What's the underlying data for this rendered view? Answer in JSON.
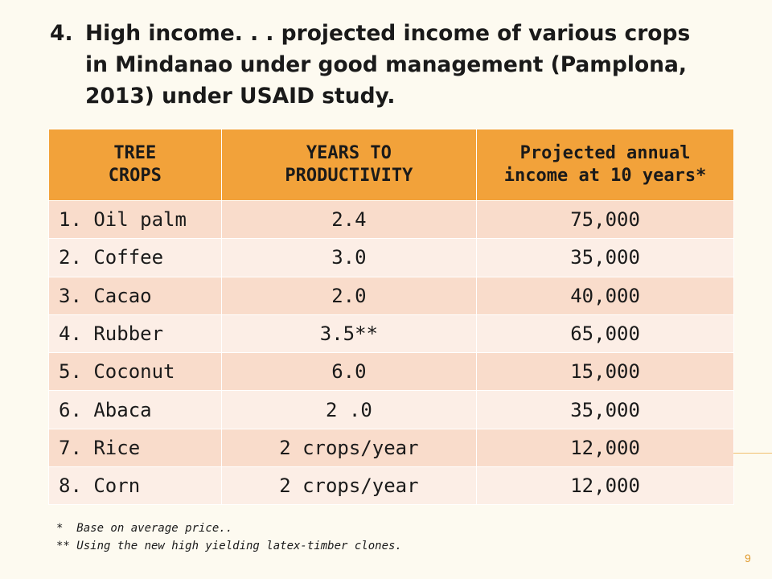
{
  "heading": {
    "number": "4.",
    "line1": "High income. . . projected income of various crops",
    "line2": "in Mindanao under good management (Pamplona,",
    "line3": "2013) under USAID study."
  },
  "table": {
    "headers": {
      "col1_line1": "TREE",
      "col1_line2": "CROPS",
      "col2_line1": "YEARS TO",
      "col2_line2": "PRODUCTIVITY",
      "col3_line1": "Projected annual",
      "col3_line2": "income at 10 years*"
    },
    "rows": [
      {
        "crop": "1.  Oil palm",
        "years": "2.4",
        "income": "75,000"
      },
      {
        "crop": "2.  Coffee",
        "years": "3.0",
        "income": "35,000"
      },
      {
        "crop": "3.  Cacao",
        "years": "2.0",
        "income": "40,000"
      },
      {
        "crop": "4.  Rubber",
        "years": "3.5**",
        "income": "65,000"
      },
      {
        "crop": "5.  Coconut",
        "years": "6.0",
        "income": "15,000"
      },
      {
        "crop": "6.  Abaca",
        "years": "2 .0",
        "income": "35,000"
      },
      {
        "crop": "7.  Rice",
        "years": "2 crops/year",
        "income": "12,000"
      },
      {
        "crop": "8.  Corn",
        "years": "2 crops/year",
        "income": "12,000"
      }
    ]
  },
  "footnotes": {
    "note1": "*  Base on average price..",
    "note2": "** Using the new high yielding latex-timber clones."
  },
  "page_number": "9",
  "colors": {
    "header_fill": "#f2a23a",
    "row_fill_a": "#f9dccb",
    "row_fill_b": "#fceee6",
    "accent": "#e09a2e"
  }
}
